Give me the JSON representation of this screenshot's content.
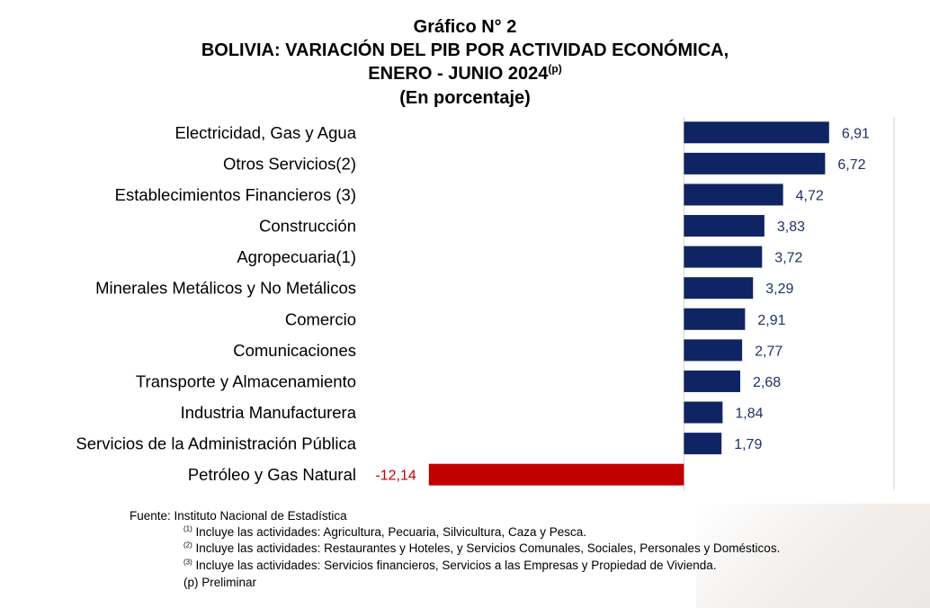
{
  "header": {
    "line1": "Gráfico N° 2",
    "line2": "BOLIVIA: VARIACIÓN DEL PIB POR ACTIVIDAD ECONÓMICA,",
    "line3": "ENERO - JUNIO 2024",
    "line3_sup": "(p)",
    "line4": "(En porcentaje)"
  },
  "chart_data": {
    "type": "bar",
    "orientation": "horizontal",
    "categories": [
      "Electricidad, Gas y Agua",
      "Otros Servicios(2)",
      "Establecimientos Financieros (3)",
      "Construcción",
      "Agropecuaria(1)",
      "Minerales Metálicos y No Metálicos",
      "Comercio",
      "Comunicaciones",
      "Transporte y Almacenamiento",
      "Industria Manufacturera",
      "Servicios de la Administración Pública",
      "Petróleo y Gas Natural"
    ],
    "values": [
      6.91,
      6.72,
      4.72,
      3.83,
      3.72,
      3.29,
      2.91,
      2.77,
      2.68,
      1.84,
      1.79,
      -12.14
    ],
    "value_labels": [
      "6,91",
      "6,72",
      "4,72",
      "3,83",
      "3,72",
      "3,29",
      "2,91",
      "2,77",
      "2,68",
      "1,84",
      "1,79",
      "-12,14"
    ],
    "xlim": [
      -15,
      10
    ],
    "grid": true,
    "colors": {
      "positive": "#0f2462",
      "negative": "#c00000",
      "positive_label": "#1f3264",
      "negative_label": "#c00000",
      "grid": "#d4d4d4"
    }
  },
  "notes": {
    "source": "Fuente: Instituto Nacional de Estadística",
    "n1_sup": "(1)",
    "n1": " Incluye las actividades: Agricultura, Pecuaria, Silvicultura, Caza y Pesca.",
    "n2_sup": "(2)",
    "n2": " Incluye las actividades: Restaurantes y Hoteles, y Servicios Comunales, Sociales, Personales y Domésticos.",
    "n3_sup": "(3)",
    "n3": " Incluye las actividades: Servicios financieros, Servicios a las Empresas y Propiedad de Vivienda.",
    "p": "(p) Preliminar"
  }
}
